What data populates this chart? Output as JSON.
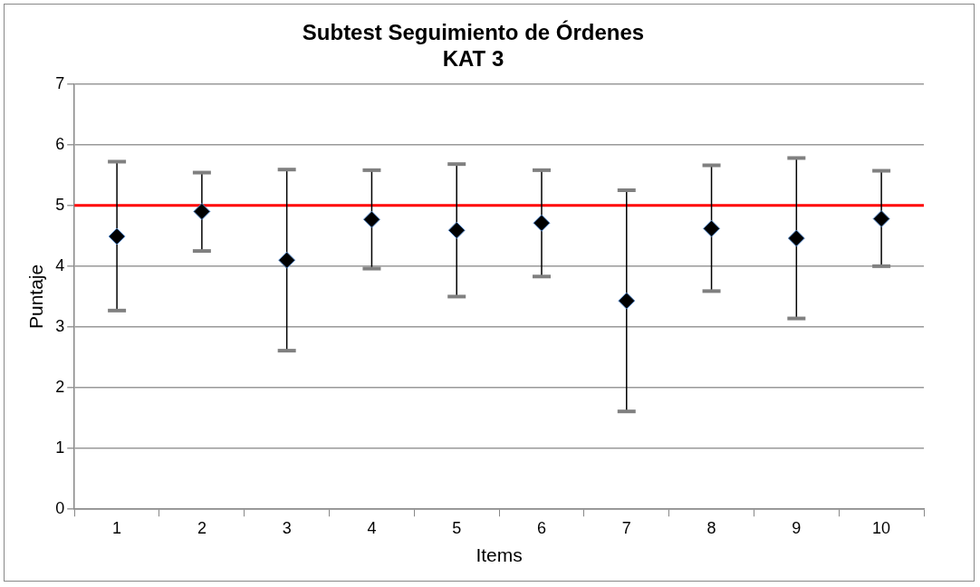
{
  "chart_data": {
    "type": "scatter",
    "title": "Subtest Seguimiento de Órdenes\nKAT 3",
    "xlabel": "Items",
    "ylabel": "Puntaje",
    "categories": [
      "1",
      "2",
      "3",
      "4",
      "5",
      "6",
      "7",
      "8",
      "9",
      "10"
    ],
    "values": [
      4.49,
      4.9,
      4.1,
      4.77,
      4.59,
      4.71,
      3.43,
      4.62,
      4.46,
      4.78
    ],
    "errors": [
      [
        3.27,
        5.72
      ],
      [
        4.25,
        5.54
      ],
      [
        2.61,
        5.59
      ],
      [
        3.96,
        5.58
      ],
      [
        3.5,
        5.68
      ],
      [
        3.83,
        5.58
      ],
      [
        1.61,
        5.25
      ],
      [
        3.59,
        5.66
      ],
      [
        3.14,
        5.78
      ],
      [
        4.0,
        5.57
      ]
    ],
    "color": "#000000",
    "marker": "diamond",
    "ylim": [
      0,
      7
    ],
    "yticks": [
      0,
      1,
      2,
      3,
      4,
      5,
      6,
      7
    ],
    "grid": "y",
    "ref_lines": [
      {
        "axis": "y",
        "value": 5,
        "color": "#ff0000"
      }
    ]
  }
}
